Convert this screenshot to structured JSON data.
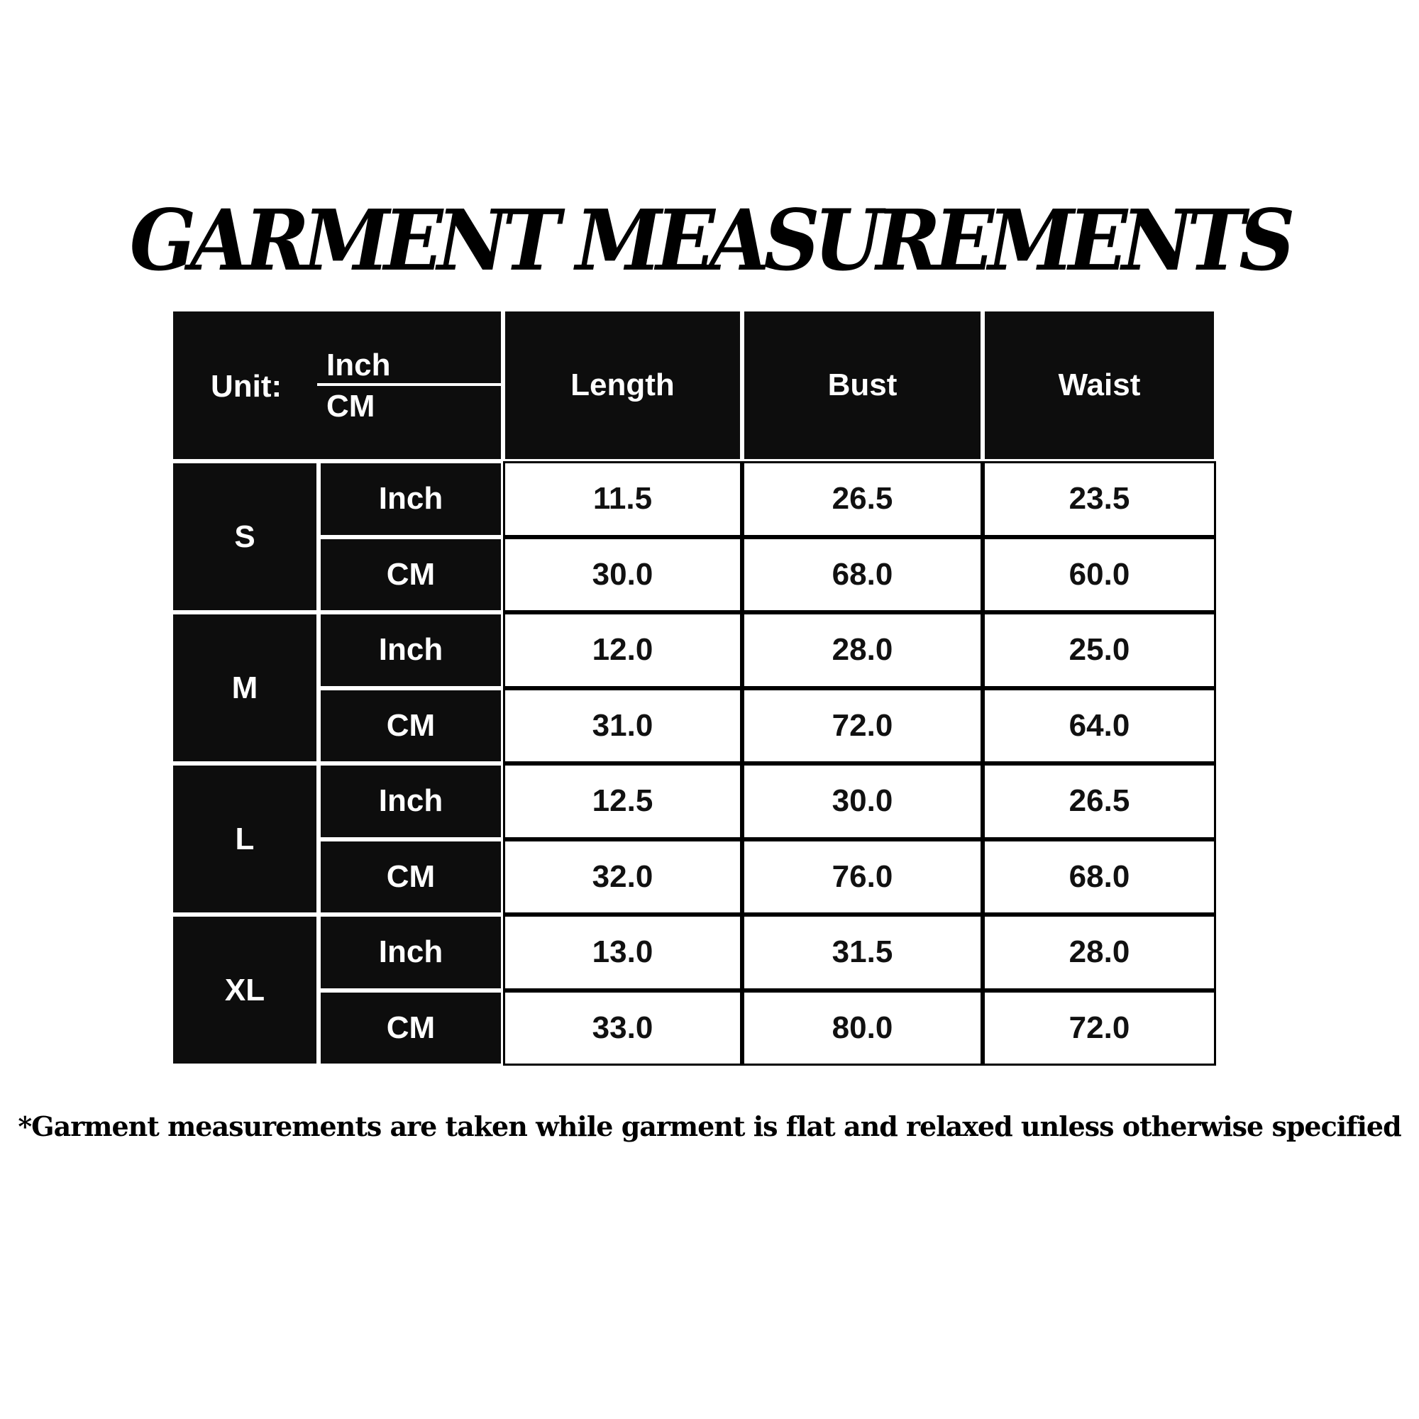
{
  "title": "GARMENT MEASUREMENTS",
  "header": {
    "unit_label": "Unit:",
    "unit_inch": "Inch",
    "unit_cm": "CM",
    "columns": [
      "Length",
      "Bust",
      "Waist"
    ]
  },
  "sizes": [
    {
      "size": "S",
      "rows": [
        {
          "unit": "Inch",
          "values": [
            "11.5",
            "26.5",
            "23.5"
          ]
        },
        {
          "unit": "CM",
          "values": [
            "30.0",
            "68.0",
            "60.0"
          ]
        }
      ]
    },
    {
      "size": "M",
      "rows": [
        {
          "unit": "Inch",
          "values": [
            "12.0",
            "28.0",
            "25.0"
          ]
        },
        {
          "unit": "CM",
          "values": [
            "31.0",
            "72.0",
            "64.0"
          ]
        }
      ]
    },
    {
      "size": "L",
      "rows": [
        {
          "unit": "Inch",
          "values": [
            "12.5",
            "30.0",
            "26.5"
          ]
        },
        {
          "unit": "CM",
          "values": [
            "32.0",
            "76.0",
            "68.0"
          ]
        }
      ]
    },
    {
      "size": "XL",
      "rows": [
        {
          "unit": "Inch",
          "values": [
            "13.0",
            "31.5",
            "28.0"
          ]
        },
        {
          "unit": "CM",
          "values": [
            "33.0",
            "80.0",
            "72.0"
          ]
        }
      ]
    }
  ],
  "footnote": "*Garment measurements are taken while garment is flat and relaxed unless otherwise specified"
}
